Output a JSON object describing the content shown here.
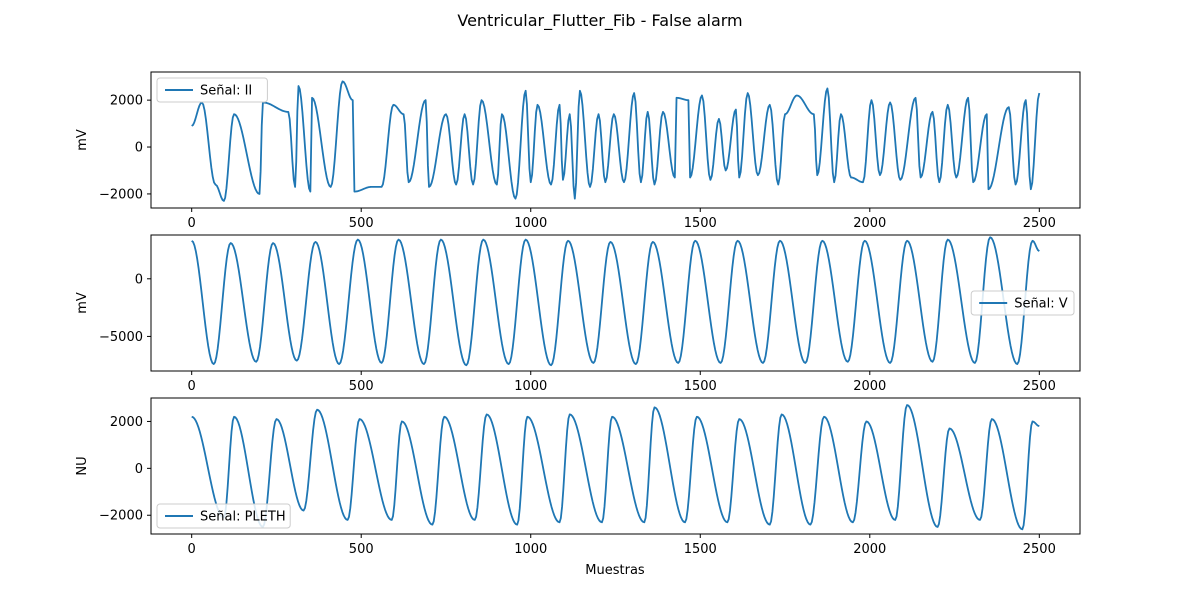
{
  "chart_data": {
    "type": "line",
    "title": "Ventricular_Flutter_Fib - False alarm",
    "xlabel": "Muestras",
    "line_color": "#1f77b4",
    "subplots": [
      {
        "ylabel": "mV",
        "legend": "Señal: II",
        "legend_loc": "upper left",
        "xlim": [
          -120,
          2620
        ],
        "ylim": [
          -2600,
          3200
        ],
        "xticks": [
          0,
          500,
          1000,
          1500,
          2000,
          2500
        ],
        "yticks": [
          -2000,
          0,
          2000
        ],
        "x_end": 2500,
        "start_value": 900,
        "peaks": [
          [
            30,
            1900
          ],
          [
            125,
            1400
          ],
          [
            210,
            1900
          ],
          [
            285,
            1500
          ],
          [
            315,
            2600
          ],
          [
            355,
            2100
          ],
          [
            445,
            2800
          ],
          [
            475,
            2000
          ],
          [
            595,
            1800
          ],
          [
            625,
            1400
          ],
          [
            690,
            2000
          ],
          [
            750,
            1400
          ],
          [
            805,
            1400
          ],
          [
            855,
            2000
          ],
          [
            915,
            1400
          ],
          [
            985,
            2400
          ],
          [
            1020,
            1800
          ],
          [
            1085,
            1800
          ],
          [
            1115,
            1400
          ],
          [
            1145,
            2400
          ],
          [
            1200,
            1400
          ],
          [
            1245,
            1400
          ],
          [
            1305,
            2300
          ],
          [
            1345,
            1500
          ],
          [
            1390,
            1500
          ],
          [
            1430,
            2100
          ],
          [
            1465,
            2000
          ],
          [
            1505,
            2200
          ],
          [
            1555,
            1200
          ],
          [
            1605,
            1600
          ],
          [
            1640,
            2300
          ],
          [
            1705,
            1800
          ],
          [
            1750,
            1400
          ],
          [
            1785,
            2200
          ],
          [
            1835,
            1400
          ],
          [
            1875,
            2500
          ],
          [
            1915,
            1400
          ],
          [
            2005,
            2000
          ],
          [
            2060,
            1900
          ],
          [
            2135,
            2100
          ],
          [
            2185,
            1500
          ],
          [
            2230,
            1800
          ],
          [
            2290,
            2100
          ],
          [
            2345,
            1400
          ],
          [
            2410,
            1700
          ],
          [
            2460,
            2000
          ],
          [
            2500,
            2300
          ]
        ],
        "troughs": [
          [
            70,
            -1600
          ],
          [
            95,
            -2300
          ],
          [
            200,
            -2000
          ],
          [
            285,
            -1400
          ],
          [
            305,
            -1700
          ],
          [
            350,
            -1900
          ],
          [
            410,
            -1700
          ],
          [
            480,
            -1900
          ],
          [
            530,
            -1700
          ],
          [
            560,
            -1700
          ],
          [
            640,
            -1500
          ],
          [
            700,
            -1700
          ],
          [
            780,
            -1600
          ],
          [
            830,
            -1600
          ],
          [
            900,
            -1600
          ],
          [
            955,
            -2200
          ],
          [
            1000,
            -1500
          ],
          [
            1060,
            -1600
          ],
          [
            1095,
            -1400
          ],
          [
            1130,
            -2200
          ],
          [
            1175,
            -1700
          ],
          [
            1220,
            -1500
          ],
          [
            1275,
            -1500
          ],
          [
            1325,
            -1500
          ],
          [
            1365,
            -1600
          ],
          [
            1425,
            -1300
          ],
          [
            1470,
            -1300
          ],
          [
            1530,
            -1400
          ],
          [
            1575,
            -1000
          ],
          [
            1615,
            -1300
          ],
          [
            1670,
            -1200
          ],
          [
            1730,
            -1600
          ],
          [
            1785,
            -1500
          ],
          [
            1845,
            -1200
          ],
          [
            1895,
            -1500
          ],
          [
            1945,
            -1300
          ],
          [
            1980,
            -1500
          ],
          [
            2030,
            -1200
          ],
          [
            2090,
            -1400
          ],
          [
            2150,
            -1300
          ],
          [
            2205,
            -1500
          ],
          [
            2255,
            -1300
          ],
          [
            2305,
            -1500
          ],
          [
            2350,
            -1800
          ],
          [
            2430,
            -1600
          ],
          [
            2475,
            -1800
          ]
        ]
      },
      {
        "ylabel": "mV",
        "legend": "Señal: V",
        "legend_loc": "center right",
        "xlim": [
          -120,
          2620
        ],
        "ylim": [
          -8000,
          3800
        ],
        "xticks": [
          0,
          500,
          1000,
          1500,
          2000,
          2500
        ],
        "yticks": [
          -5000,
          0
        ],
        "x_end": 2500,
        "start_value": 3300,
        "peaks": [
          [
            0,
            3300
          ],
          [
            115,
            3100
          ],
          [
            240,
            3100
          ],
          [
            365,
            3200
          ],
          [
            490,
            3400
          ],
          [
            610,
            3400
          ],
          [
            735,
            3400
          ],
          [
            860,
            3400
          ],
          [
            985,
            3400
          ],
          [
            1110,
            3300
          ],
          [
            1235,
            3200
          ],
          [
            1360,
            3200
          ],
          [
            1485,
            3300
          ],
          [
            1610,
            3300
          ],
          [
            1735,
            3300
          ],
          [
            1860,
            3300
          ],
          [
            1985,
            3300
          ],
          [
            2110,
            3300
          ],
          [
            2230,
            3400
          ],
          [
            2355,
            3600
          ],
          [
            2480,
            3300
          ],
          [
            2500,
            2400
          ]
        ],
        "troughs": [
          [
            65,
            -7400
          ],
          [
            190,
            -7200
          ],
          [
            310,
            -7100
          ],
          [
            435,
            -7400
          ],
          [
            560,
            -7300
          ],
          [
            685,
            -7400
          ],
          [
            810,
            -7500
          ],
          [
            935,
            -7400
          ],
          [
            1060,
            -7500
          ],
          [
            1185,
            -7300
          ],
          [
            1310,
            -7400
          ],
          [
            1435,
            -7300
          ],
          [
            1560,
            -7300
          ],
          [
            1685,
            -7300
          ],
          [
            1810,
            -7300
          ],
          [
            1935,
            -7200
          ],
          [
            2060,
            -7300
          ],
          [
            2185,
            -7200
          ],
          [
            2310,
            -7300
          ],
          [
            2435,
            -7400
          ]
        ]
      },
      {
        "ylabel": "NU",
        "legend": "Señal: PLETH",
        "legend_loc": "lower left",
        "xlim": [
          -120,
          2620
        ],
        "ylim": [
          -2800,
          3000
        ],
        "xticks": [
          0,
          500,
          1000,
          1500,
          2000,
          2500
        ],
        "yticks": [
          -2000,
          0,
          2000
        ],
        "x_end": 2500,
        "start_value": 2200,
        "peaks": [
          [
            0,
            2200
          ],
          [
            125,
            2200
          ],
          [
            250,
            2100
          ],
          [
            370,
            2500
          ],
          [
            495,
            2100
          ],
          [
            620,
            2000
          ],
          [
            745,
            2200
          ],
          [
            870,
            2300
          ],
          [
            990,
            2200
          ],
          [
            1115,
            2300
          ],
          [
            1240,
            2200
          ],
          [
            1365,
            2600
          ],
          [
            1490,
            2200
          ],
          [
            1615,
            2100
          ],
          [
            1740,
            2300
          ],
          [
            1865,
            2200
          ],
          [
            1990,
            2000
          ],
          [
            2110,
            2700
          ],
          [
            2235,
            1700
          ],
          [
            2360,
            2100
          ],
          [
            2480,
            2000
          ],
          [
            2500,
            1800
          ]
        ],
        "troughs": [
          [
            95,
            -2100
          ],
          [
            210,
            -2500
          ],
          [
            330,
            -1800
          ],
          [
            460,
            -2200
          ],
          [
            590,
            -2200
          ],
          [
            710,
            -2400
          ],
          [
            835,
            -2200
          ],
          [
            960,
            -2400
          ],
          [
            1085,
            -2300
          ],
          [
            1210,
            -2300
          ],
          [
            1335,
            -2300
          ],
          [
            1455,
            -2300
          ],
          [
            1580,
            -2300
          ],
          [
            1705,
            -2400
          ],
          [
            1825,
            -2400
          ],
          [
            1950,
            -2300
          ],
          [
            2075,
            -2200
          ],
          [
            2200,
            -2500
          ],
          [
            2325,
            -2200
          ],
          [
            2450,
            -2600
          ]
        ]
      }
    ]
  }
}
